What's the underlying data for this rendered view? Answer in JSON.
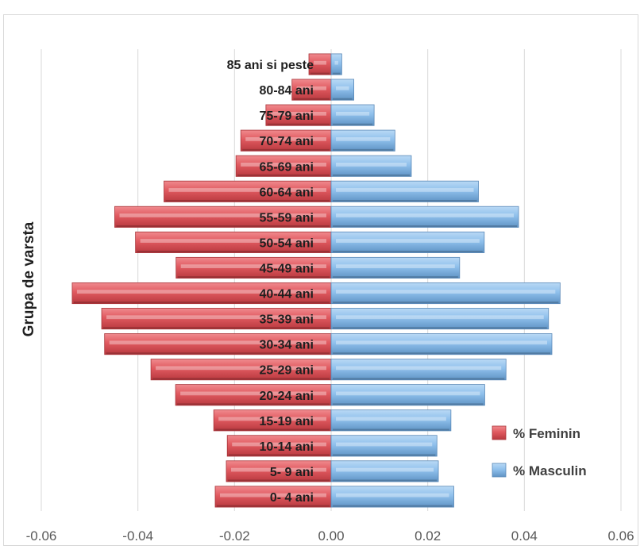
{
  "chart_data": {
    "type": "bar",
    "orientation": "horizontal",
    "layout": "population-pyramid",
    "categories": [
      "0- 4 ani",
      "5- 9 ani",
      "10-14 ani",
      "15-19 ani",
      "20-24 ani",
      "25-29 ani",
      "30-34 ani",
      "35-39 ani",
      "40-44 ani",
      "45-49 ani",
      "50-54 ani",
      "55-59 ani",
      "60-64 ani",
      "65-69 ani",
      "70-74 ani",
      "75-79 ani",
      "80-84 ani",
      "85 ani si peste"
    ],
    "series": [
      {
        "name": "% Feminin",
        "color": "#e0595f",
        "values": [
          -0.024,
          -0.0217,
          -0.0215,
          -0.0243,
          -0.0322,
          -0.0373,
          -0.0469,
          -0.0475,
          -0.0536,
          -0.0321,
          -0.0405,
          -0.0448,
          -0.0346,
          -0.0197,
          -0.0187,
          -0.0135,
          -0.0081,
          -0.0046
        ]
      },
      {
        "name": "% Masculin",
        "color": "#8fc0ec",
        "values": [
          0.0254,
          0.0222,
          0.0219,
          0.0248,
          0.0318,
          0.0362,
          0.0457,
          0.045,
          0.0474,
          0.0266,
          0.0317,
          0.0388,
          0.0305,
          0.0166,
          0.0132,
          0.0089,
          0.0047,
          0.0022
        ]
      }
    ],
    "xlim": [
      -0.06,
      0.06
    ],
    "xticks": [
      "-0.06",
      "-0.04",
      "-0.02",
      "0.00",
      "0.02",
      "0.04",
      "0.06"
    ],
    "xtick_values": [
      -0.06,
      -0.04,
      -0.02,
      0,
      0.02,
      0.04,
      0.06
    ],
    "ylabel": "Grupa de varsta",
    "xlabel": "",
    "title": "",
    "grid": true,
    "legend_position": "right"
  }
}
